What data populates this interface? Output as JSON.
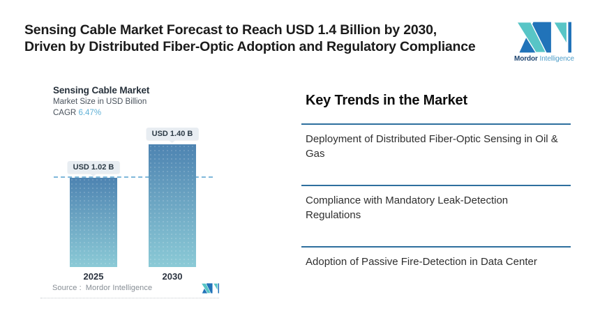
{
  "header": {
    "title_line1": "Sensing Cable Market Forecast to Reach USD 1.4 Billion by 2030,",
    "title_line2": "Driven by Distributed Fiber-Optic Adoption and Regulatory Compliance",
    "brand": {
      "bold": "Mordor",
      "light": " Intelligence"
    }
  },
  "chart_data": {
    "type": "bar",
    "title": "Sensing Cable Market",
    "subtitle": "Market Size in USD Billion",
    "cagr_label": "CAGR",
    "cagr_value": "6.47%",
    "categories": [
      "2025",
      "2030"
    ],
    "values": [
      1.02,
      1.4
    ],
    "value_labels": [
      "USD 1.02 B",
      "USD 1.40 B"
    ],
    "unit": "USD Billion",
    "ylim": [
      0,
      1.55
    ],
    "reference_line": 1.02,
    "grid": false,
    "legend": false,
    "source_label": "Source :",
    "source_value": "Mordor Intelligence"
  },
  "trends": {
    "heading": "Key Trends in the Market",
    "items": [
      "Deployment of Distributed Fiber-Optic Sensing in Oil & Gas",
      "Compliance with Mandatory Leak-Detection Regulations",
      "Adoption of Passive Fire-Detection in Data Center"
    ]
  },
  "colors": {
    "bar_top": "#4d83b1",
    "bar_bottom": "#8bcad6",
    "divider_blue": "#2e6f9e",
    "dashed_line": "#7fb8da",
    "cagr_accent": "#5fb0d6",
    "label_box_bg": "#e8edf2",
    "logo_dark_blue": "#2173b9",
    "logo_teal": "#58c5c6"
  }
}
